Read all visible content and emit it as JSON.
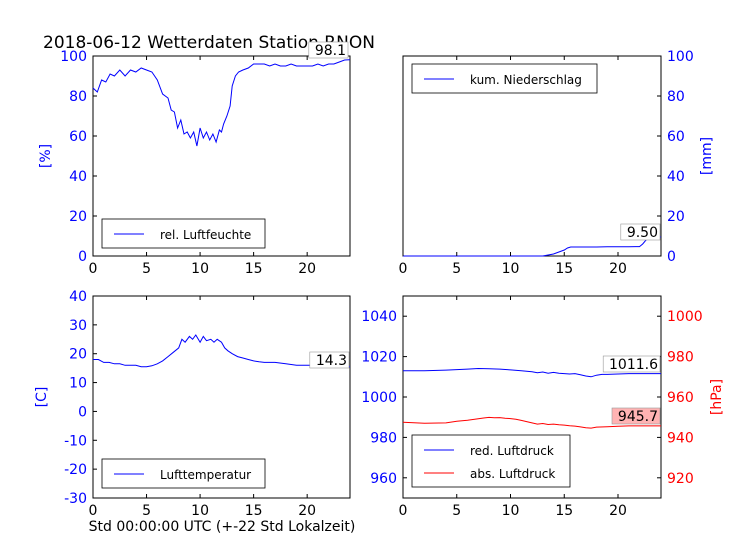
{
  "title": "2018-06-12 Wetterdaten Station RNON",
  "xlabel_bottom": "Std 00:00:00 UTC (+-22 Std Lokalzeit)",
  "colors": {
    "blue": "#0000ff",
    "red": "#ff0000",
    "axis": "#000000",
    "highlight": "#ffb3b3"
  },
  "chart_data": [
    {
      "id": "humidity",
      "type": "line",
      "ylabel": "[%]",
      "xlim": [
        0,
        24
      ],
      "ylim": [
        0,
        100
      ],
      "xticks": [
        0,
        5,
        10,
        15,
        20
      ],
      "yticks": [
        0,
        20,
        40,
        60,
        80,
        100
      ],
      "y_axis_side": "left",
      "legend": "bottom-left",
      "last_value_label": "98.1",
      "series": [
        {
          "name": "rel. Luftfeuchte",
          "color": "#0000ff",
          "x": [
            0,
            0.4,
            0.8,
            1.2,
            1.6,
            2,
            2.5,
            3,
            3.5,
            4,
            4.5,
            5,
            5.5,
            6,
            6.5,
            7,
            7.3,
            7.6,
            7.9,
            8.2,
            8.5,
            8.8,
            9.1,
            9.4,
            9.7,
            10,
            10.3,
            10.6,
            10.9,
            11.2,
            11.5,
            11.8,
            12,
            12.2,
            12.5,
            12.8,
            13,
            13.3,
            13.6,
            14,
            14.5,
            15,
            15.5,
            16,
            16.5,
            17,
            17.5,
            18,
            18.5,
            19,
            19.5,
            20,
            20.5,
            21,
            21.5,
            22,
            22.5,
            23,
            23.5,
            24
          ],
          "y": [
            84,
            82,
            88,
            87,
            91,
            90,
            93,
            90,
            93,
            92,
            94,
            93,
            92,
            88,
            81,
            79,
            73,
            72,
            64,
            68,
            61,
            62,
            59,
            62,
            55,
            64,
            59,
            62,
            58,
            61,
            57,
            63,
            62,
            66,
            70,
            75,
            85,
            90,
            92,
            93,
            94,
            96,
            96,
            96,
            95,
            96,
            95,
            95,
            96,
            95,
            95,
            95,
            95,
            96,
            95,
            96,
            96,
            97,
            98,
            98.1
          ]
        }
      ]
    },
    {
      "id": "precipitation",
      "type": "line",
      "ylabel": "[mm]",
      "xlim": [
        0,
        24
      ],
      "ylim": [
        0,
        100
      ],
      "xticks": [
        0,
        5,
        10,
        15,
        20
      ],
      "yticks": [
        0,
        20,
        40,
        60,
        80,
        100
      ],
      "y_axis_side": "right",
      "legend": "top-left",
      "last_value_label": "9.50",
      "series": [
        {
          "name": "kum. Niederschlag",
          "color": "#0000ff",
          "x": [
            0,
            13,
            13.5,
            14,
            14.5,
            15,
            15.3,
            15.6,
            16,
            17,
            18,
            19,
            20,
            21,
            22,
            22.3,
            22.6,
            23,
            23.5,
            24
          ],
          "y": [
            0,
            0,
            0.5,
            1,
            2,
            3,
            4,
            4.5,
            4.5,
            4.5,
            4.5,
            4.6,
            4.6,
            4.6,
            4.7,
            6,
            8,
            9,
            9.5,
            9.5
          ]
        }
      ]
    },
    {
      "id": "temperature",
      "type": "line",
      "ylabel": "[C]",
      "xlim": [
        0,
        24
      ],
      "ylim": [
        -30,
        40
      ],
      "xticks": [
        0,
        5,
        10,
        15,
        20
      ],
      "yticks": [
        -30,
        -20,
        -10,
        0,
        10,
        20,
        30,
        40
      ],
      "y_axis_side": "left",
      "legend": "bottom-left",
      "last_value_label": "14.3",
      "series": [
        {
          "name": "Lufttemperatur",
          "color": "#0000ff",
          "x": [
            0,
            0.5,
            1,
            1.5,
            2,
            2.5,
            3,
            3.5,
            4,
            4.5,
            5,
            5.5,
            6,
            6.5,
            7,
            7.5,
            8,
            8.3,
            8.6,
            9,
            9.3,
            9.6,
            10,
            10.3,
            10.6,
            11,
            11.3,
            11.6,
            12,
            12.3,
            12.6,
            13,
            13.5,
            14,
            14.5,
            15,
            15.5,
            16,
            17,
            18,
            19,
            20,
            21,
            22,
            23,
            24
          ],
          "y": [
            18,
            18,
            17,
            17,
            16.5,
            16.5,
            16,
            16,
            16,
            15.5,
            15.5,
            15.8,
            16.5,
            17.5,
            19,
            20.5,
            22,
            25,
            24,
            26,
            25,
            26.5,
            24,
            26,
            24.5,
            25,
            24,
            25,
            24,
            22,
            21,
            20,
            19,
            18.5,
            18,
            17.5,
            17.2,
            17,
            17,
            16.5,
            16,
            16,
            16,
            15.5,
            15.5,
            15.5
          ]
        }
      ]
    },
    {
      "id": "pressure",
      "type": "line",
      "ylabel_right": "[hPa]",
      "xlim": [
        0,
        24
      ],
      "ylim_left": [
        950,
        1050
      ],
      "ylim_right": [
        910,
        1010
      ],
      "xticks": [
        0,
        5,
        10,
        15,
        20
      ],
      "yticks_left": [
        960,
        980,
        1000,
        1020,
        1040
      ],
      "yticks_right": [
        920,
        940,
        960,
        980,
        1000
      ],
      "legend": "bottom-left",
      "last_value_labels": [
        "1011.6",
        "945.7"
      ],
      "series": [
        {
          "name": "red. Luftdruck",
          "axis": "left",
          "color": "#0000ff",
          "x": [
            0,
            2,
            4,
            6,
            7,
            8,
            9,
            10,
            11,
            12,
            12.5,
            13,
            13.5,
            14,
            14.5,
            15,
            15.5,
            16,
            16.5,
            17,
            17.5,
            18,
            18.5,
            19,
            20,
            21,
            22,
            23,
            24
          ],
          "y": [
            1013,
            1013,
            1013.3,
            1013.8,
            1014.1,
            1014,
            1013.8,
            1013.4,
            1013,
            1012.5,
            1012,
            1012.4,
            1011.8,
            1012.2,
            1011.8,
            1011.6,
            1011.4,
            1011.6,
            1011,
            1010.4,
            1010,
            1010.8,
            1011.2,
            1011.2,
            1011.4,
            1011.6,
            1011.6,
            1011.6,
            1011.6
          ]
        },
        {
          "name": "abs. Luftdruck",
          "axis": "right",
          "color": "#ff0000",
          "x": [
            0,
            2,
            4,
            5,
            6,
            7,
            7.5,
            8,
            8.5,
            9,
            9.5,
            10,
            10.5,
            11,
            11.5,
            12,
            12.5,
            13,
            13.5,
            14,
            14.5,
            15,
            15.5,
            16,
            16.5,
            17,
            17.5,
            18,
            19,
            20,
            21,
            22,
            23,
            24
          ],
          "y": [
            947.5,
            947,
            947.2,
            948,
            948.5,
            949.2,
            949.6,
            949.9,
            949.7,
            949.8,
            949.5,
            949.3,
            949,
            948.4,
            947.8,
            947.2,
            946.6,
            946.9,
            946.4,
            946.6,
            946.3,
            946.1,
            945.8,
            945.6,
            945.2,
            944.8,
            944.6,
            945.1,
            945.3,
            945.5,
            945.7,
            945.7,
            945.7,
            945.7
          ]
        }
      ]
    }
  ]
}
